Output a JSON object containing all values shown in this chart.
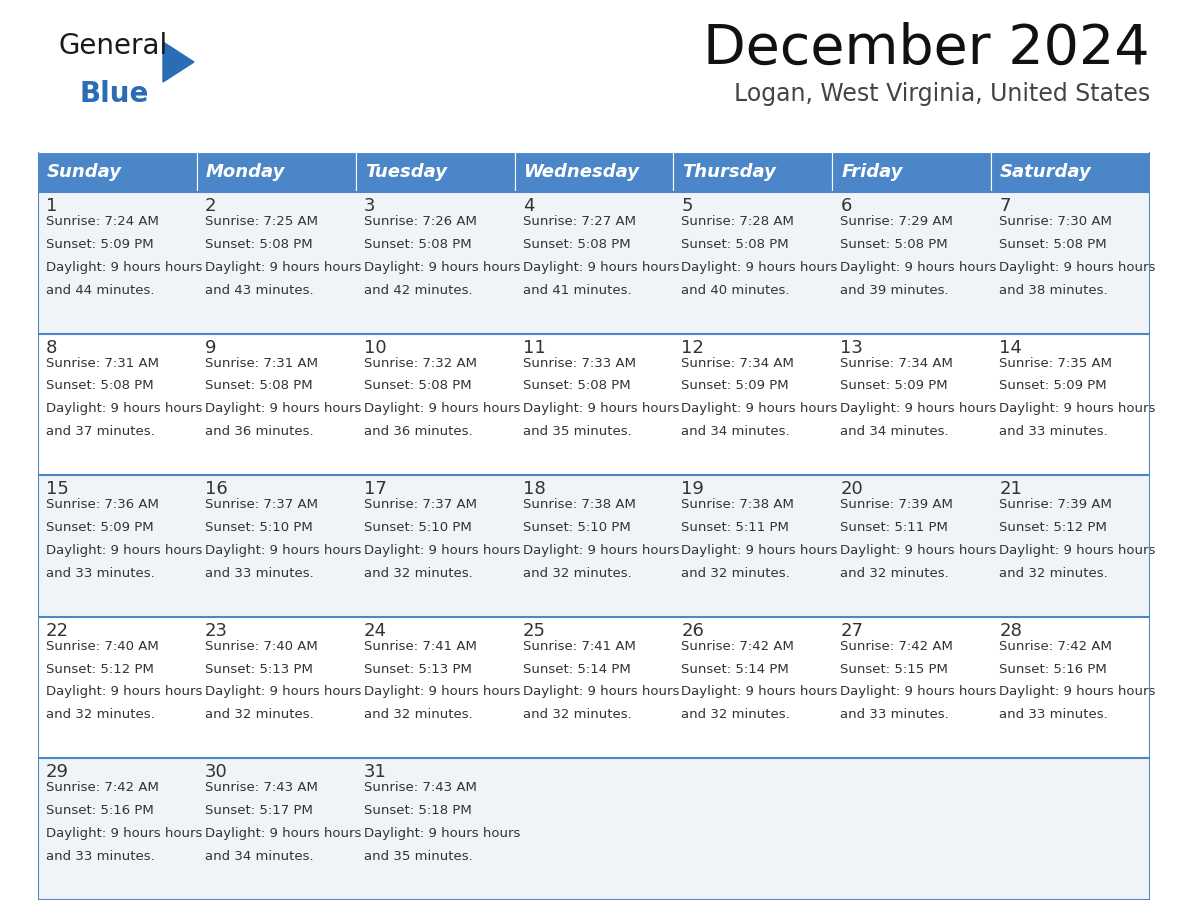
{
  "title": "December 2024",
  "subtitle": "Logan, West Virginia, United States",
  "header_color": "#4a86c8",
  "header_text_color": "#ffffff",
  "cell_bg_even": "#f0f4f8",
  "cell_bg_odd": "#ffffff",
  "border_color": "#4a86c8",
  "text_color": "#333333",
  "days_of_week": [
    "Sunday",
    "Monday",
    "Tuesday",
    "Wednesday",
    "Thursday",
    "Friday",
    "Saturday"
  ],
  "weeks": [
    [
      {
        "day": "1",
        "sunrise": "7:24 AM",
        "sunset": "5:09 PM",
        "daylight": "9 hours and 44 minutes"
      },
      {
        "day": "2",
        "sunrise": "7:25 AM",
        "sunset": "5:08 PM",
        "daylight": "9 hours and 43 minutes"
      },
      {
        "day": "3",
        "sunrise": "7:26 AM",
        "sunset": "5:08 PM",
        "daylight": "9 hours and 42 minutes"
      },
      {
        "day": "4",
        "sunrise": "7:27 AM",
        "sunset": "5:08 PM",
        "daylight": "9 hours and 41 minutes"
      },
      {
        "day": "5",
        "sunrise": "7:28 AM",
        "sunset": "5:08 PM",
        "daylight": "9 hours and 40 minutes"
      },
      {
        "day": "6",
        "sunrise": "7:29 AM",
        "sunset": "5:08 PM",
        "daylight": "9 hours and 39 minutes"
      },
      {
        "day": "7",
        "sunrise": "7:30 AM",
        "sunset": "5:08 PM",
        "daylight": "9 hours and 38 minutes"
      }
    ],
    [
      {
        "day": "8",
        "sunrise": "7:31 AM",
        "sunset": "5:08 PM",
        "daylight": "9 hours and 37 minutes"
      },
      {
        "day": "9",
        "sunrise": "7:31 AM",
        "sunset": "5:08 PM",
        "daylight": "9 hours and 36 minutes"
      },
      {
        "day": "10",
        "sunrise": "7:32 AM",
        "sunset": "5:08 PM",
        "daylight": "9 hours and 36 minutes"
      },
      {
        "day": "11",
        "sunrise": "7:33 AM",
        "sunset": "5:08 PM",
        "daylight": "9 hours and 35 minutes"
      },
      {
        "day": "12",
        "sunrise": "7:34 AM",
        "sunset": "5:09 PM",
        "daylight": "9 hours and 34 minutes"
      },
      {
        "day": "13",
        "sunrise": "7:34 AM",
        "sunset": "5:09 PM",
        "daylight": "9 hours and 34 minutes"
      },
      {
        "day": "14",
        "sunrise": "7:35 AM",
        "sunset": "5:09 PM",
        "daylight": "9 hours and 33 minutes"
      }
    ],
    [
      {
        "day": "15",
        "sunrise": "7:36 AM",
        "sunset": "5:09 PM",
        "daylight": "9 hours and 33 minutes"
      },
      {
        "day": "16",
        "sunrise": "7:37 AM",
        "sunset": "5:10 PM",
        "daylight": "9 hours and 33 minutes"
      },
      {
        "day": "17",
        "sunrise": "7:37 AM",
        "sunset": "5:10 PM",
        "daylight": "9 hours and 32 minutes"
      },
      {
        "day": "18",
        "sunrise": "7:38 AM",
        "sunset": "5:10 PM",
        "daylight": "9 hours and 32 minutes"
      },
      {
        "day": "19",
        "sunrise": "7:38 AM",
        "sunset": "5:11 PM",
        "daylight": "9 hours and 32 minutes"
      },
      {
        "day": "20",
        "sunrise": "7:39 AM",
        "sunset": "5:11 PM",
        "daylight": "9 hours and 32 minutes"
      },
      {
        "day": "21",
        "sunrise": "7:39 AM",
        "sunset": "5:12 PM",
        "daylight": "9 hours and 32 minutes"
      }
    ],
    [
      {
        "day": "22",
        "sunrise": "7:40 AM",
        "sunset": "5:12 PM",
        "daylight": "9 hours and 32 minutes"
      },
      {
        "day": "23",
        "sunrise": "7:40 AM",
        "sunset": "5:13 PM",
        "daylight": "9 hours and 32 minutes"
      },
      {
        "day": "24",
        "sunrise": "7:41 AM",
        "sunset": "5:13 PM",
        "daylight": "9 hours and 32 minutes"
      },
      {
        "day": "25",
        "sunrise": "7:41 AM",
        "sunset": "5:14 PM",
        "daylight": "9 hours and 32 minutes"
      },
      {
        "day": "26",
        "sunrise": "7:42 AM",
        "sunset": "5:14 PM",
        "daylight": "9 hours and 32 minutes"
      },
      {
        "day": "27",
        "sunrise": "7:42 AM",
        "sunset": "5:15 PM",
        "daylight": "9 hours and 33 minutes"
      },
      {
        "day": "28",
        "sunrise": "7:42 AM",
        "sunset": "5:16 PM",
        "daylight": "9 hours and 33 minutes"
      }
    ],
    [
      {
        "day": "29",
        "sunrise": "7:42 AM",
        "sunset": "5:16 PM",
        "daylight": "9 hours and 33 minutes"
      },
      {
        "day": "30",
        "sunrise": "7:43 AM",
        "sunset": "5:17 PM",
        "daylight": "9 hours and 34 minutes"
      },
      {
        "day": "31",
        "sunrise": "7:43 AM",
        "sunset": "5:18 PM",
        "daylight": "9 hours and 35 minutes"
      },
      null,
      null,
      null,
      null
    ]
  ],
  "logo_general_color": "#1a1a1a",
  "logo_blue_color": "#2a6db5",
  "logo_triangle_color": "#2a6db5",
  "title_color": "#111111",
  "subtitle_color": "#444444"
}
